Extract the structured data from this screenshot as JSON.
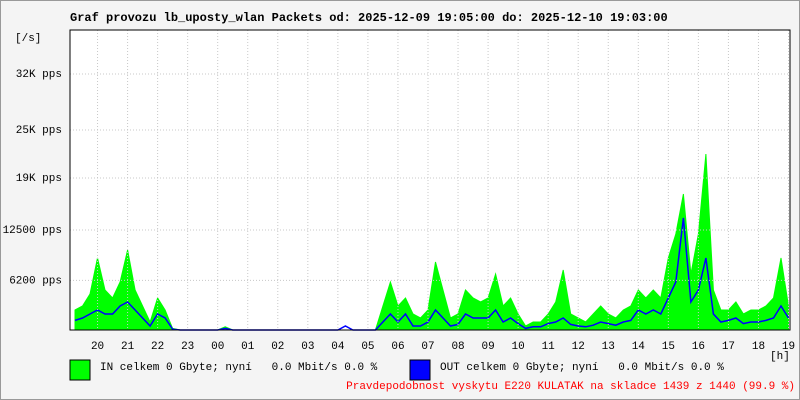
{
  "chart_data": {
    "type": "line",
    "title": "Graf provozu lb_uposty_wlan Packets od: 2025-12-09 19:05:00 do: 2025-12-10 19:03:00",
    "y_label": "[/s]",
    "x_label": "[h]",
    "xlim": [
      19.0833,
      43.05
    ],
    "xticks": [
      20,
      21,
      22,
      23,
      {
        "value": 24,
        "label": "00"
      },
      {
        "value": 25,
        "label": "01"
      },
      {
        "value": 26,
        "label": "02"
      },
      {
        "value": 27,
        "label": "03"
      },
      {
        "value": 28,
        "label": "04"
      },
      {
        "value": 29,
        "label": "05"
      },
      {
        "value": 30,
        "label": "06"
      },
      {
        "value": 31,
        "label": "07"
      },
      {
        "value": 32,
        "label": "08"
      },
      {
        "value": 33,
        "label": "09"
      },
      {
        "value": 34,
        "label": "10"
      },
      {
        "value": 35,
        "label": "11"
      },
      {
        "value": 36,
        "label": "12"
      },
      {
        "value": 37,
        "label": "13"
      },
      {
        "value": 38,
        "label": "14"
      },
      {
        "value": 39,
        "label": "15"
      },
      {
        "value": 40,
        "label": "16"
      },
      {
        "value": 41,
        "label": "17"
      },
      {
        "value": 42,
        "label": "18"
      },
      {
        "value": 43,
        "label": "19"
      }
    ],
    "ylim": [
      0,
      37500
    ],
    "yticks": [
      {
        "value": 6200,
        "label": "6200 pps"
      },
      {
        "value": 12500,
        "label": "12500 pps"
      },
      {
        "value": 19000,
        "label": "19K pps"
      },
      {
        "value": 25000,
        "label": "25K pps"
      },
      {
        "value": 32000,
        "label": "32K pps"
      }
    ],
    "grid": true,
    "x": [
      19.25,
      19.5,
      19.75,
      20,
      20.25,
      20.5,
      20.75,
      21,
      21.25,
      21.5,
      21.75,
      22,
      22.25,
      22.5,
      22.75,
      23,
      23.25,
      23.5,
      23.75,
      24,
      24.25,
      24.5,
      24.75,
      25,
      25.25,
      25.5,
      25.75,
      26,
      26.25,
      26.5,
      26.75,
      27,
      27.25,
      27.5,
      27.75,
      28,
      28.25,
      28.5,
      28.75,
      29,
      29.25,
      29.5,
      29.75,
      30,
      30.25,
      30.5,
      30.75,
      31,
      31.25,
      31.5,
      31.75,
      32,
      32.25,
      32.5,
      32.75,
      33,
      33.25,
      33.5,
      33.75,
      34,
      34.25,
      34.5,
      34.75,
      35,
      35.25,
      35.5,
      35.75,
      36,
      36.25,
      36.5,
      36.75,
      37,
      37.25,
      37.5,
      37.75,
      38,
      38.25,
      38.5,
      38.75,
      39,
      39.25,
      39.5,
      39.75,
      40,
      40.25,
      40.5,
      40.75,
      41,
      41.25,
      41.5,
      41.75,
      42,
      42.25,
      42.5,
      42.75,
      43
    ],
    "series": [
      {
        "name": "IN celkem 0 Gbyte; nyní   0.0 Mbit/s 0.0 %",
        "color": "#00ff00",
        "style": "area",
        "values": [
          2500,
          3000,
          4500,
          9000,
          5000,
          4000,
          6000,
          10000,
          5000,
          3000,
          1000,
          4000,
          2500,
          200,
          0,
          0,
          0,
          0,
          0,
          0,
          400,
          0,
          0,
          0,
          0,
          0,
          0,
          0,
          0,
          0,
          0,
          0,
          0,
          0,
          0,
          0,
          0,
          0,
          0,
          0,
          0,
          3000,
          6000,
          3000,
          4000,
          2000,
          1500,
          2500,
          8500,
          5000,
          1500,
          2000,
          5000,
          4000,
          3500,
          4000,
          7000,
          3000,
          4000,
          2000,
          500,
          1000,
          1000,
          2000,
          3500,
          7500,
          2000,
          1500,
          1000,
          2000,
          3000,
          2000,
          1500,
          2500,
          3000,
          5000,
          4000,
          5000,
          4000,
          9000,
          12000,
          17000,
          7000,
          12000,
          22000,
          5000,
          2500,
          2500,
          3500,
          2000,
          2500,
          2500,
          3000,
          4000,
          9000,
          3000
        ]
      },
      {
        "name": "OUT celkem 0 Gbyte; nyní   0.0 Mbit/s 0.0 %",
        "color": "#0000ff",
        "style": "line",
        "values": [
          1200,
          1500,
          2000,
          2500,
          2000,
          2000,
          3000,
          3500,
          2500,
          1500,
          500,
          2000,
          1500,
          100,
          0,
          0,
          0,
          0,
          0,
          0,
          200,
          0,
          0,
          0,
          0,
          0,
          0,
          0,
          0,
          0,
          0,
          0,
          0,
          0,
          0,
          0,
          500,
          0,
          0,
          0,
          0,
          1000,
          2000,
          1000,
          2000,
          500,
          500,
          1000,
          2500,
          1500,
          500,
          700,
          2000,
          1500,
          1500,
          1500,
          2500,
          1000,
          1500,
          800,
          200,
          400,
          400,
          800,
          1000,
          1500,
          700,
          500,
          400,
          600,
          1000,
          800,
          600,
          1000,
          1200,
          2500,
          2000,
          2500,
          2000,
          4000,
          6000,
          14000,
          3500,
          5000,
          9000,
          2000,
          1000,
          1200,
          1500,
          800,
          1000,
          1000,
          1200,
          1500,
          3000,
          1500
        ]
      }
    ],
    "footnote": "Pravdepodobnost vyskytu E220 KULATAK na skladce 1439 z 1440 (99.9 %)"
  }
}
